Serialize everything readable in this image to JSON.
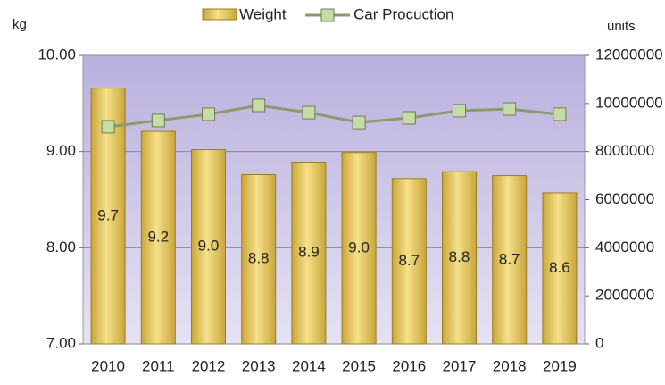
{
  "chart_data": {
    "type": "bar",
    "y_label": "kg",
    "y2_label": "units",
    "categories": [
      "2010",
      "2011",
      "2012",
      "2013",
      "2014",
      "2015",
      "2016",
      "2017",
      "2018",
      "2019"
    ],
    "series": [
      {
        "name": "Weight",
        "type": "bar",
        "color": "#e8c85a",
        "values": [
          9.66,
          9.21,
          9.02,
          8.76,
          8.89,
          8.99,
          8.72,
          8.79,
          8.75,
          8.57
        ],
        "value_labels": [
          "9.7",
          "9.2",
          "9.0",
          "8.8",
          "8.9",
          "9.0",
          "8.7",
          "8.8",
          "8.7",
          "8.6"
        ]
      },
      {
        "name": "Car Procuction",
        "type": "line",
        "axis": "y2",
        "color": "#8a9a6a",
        "values": [
          9030000,
          9290000,
          9550000,
          9920000,
          9620000,
          9210000,
          9400000,
          9700000,
          9770000,
          9550000
        ]
      }
    ],
    "ylim": [
      7,
      10
    ],
    "yticks": [
      {
        "value": 7,
        "label": "7.00"
      },
      {
        "value": 8,
        "label": "8.00"
      },
      {
        "value": 9,
        "label": "9.00"
      },
      {
        "value": 10,
        "label": "10.00"
      }
    ],
    "y2lim": [
      0,
      12000000
    ],
    "y2ticks": [
      0,
      2000000,
      4000000,
      6000000,
      8000000,
      10000000,
      12000000
    ],
    "grid": true,
    "legend": "top"
  }
}
